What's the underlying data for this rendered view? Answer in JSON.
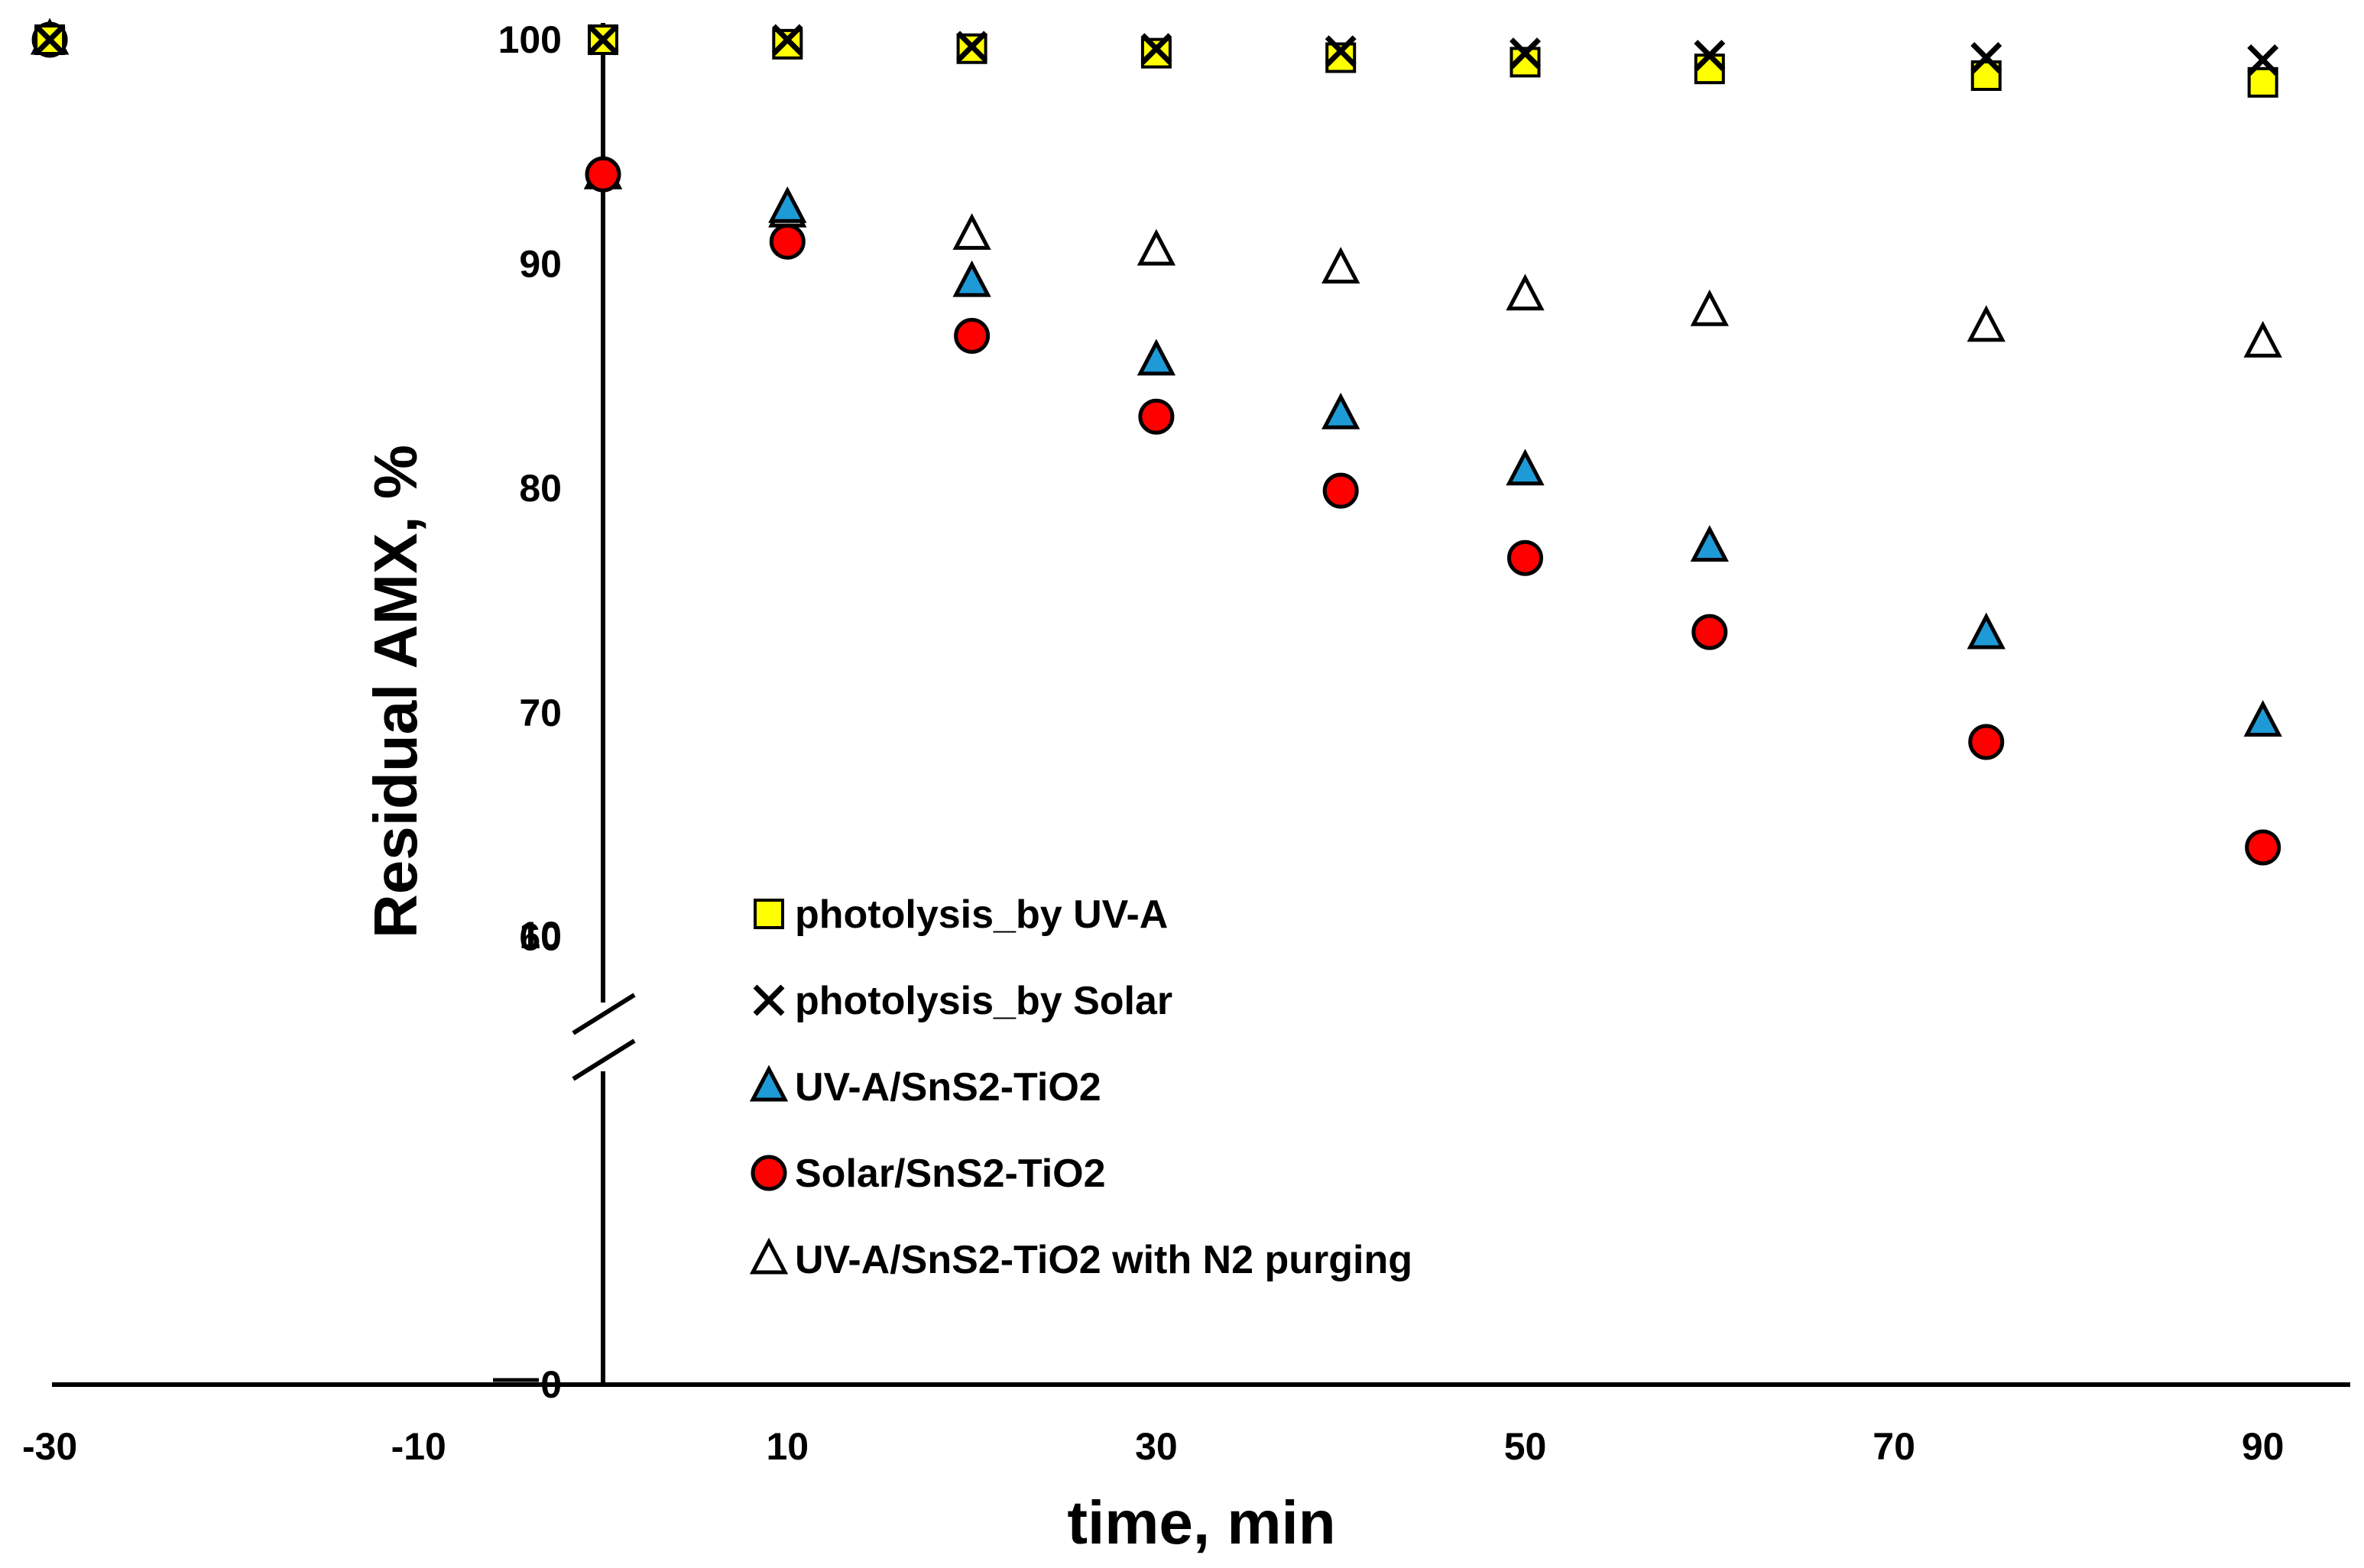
{
  "chart_data": {
    "type": "scatter",
    "title": "",
    "xlabel": "time, min",
    "ylabel": "Residual AMX, %",
    "xlim": [
      -30,
      95
    ],
    "y_axis_break": {
      "lower_range": [
        0,
        14
      ],
      "upper_range": [
        57,
        100
      ]
    },
    "grid": false,
    "legend_position": "center",
    "x_ticks": [
      "-30",
      "-10",
      "10",
      "30",
      "50",
      "70",
      "90"
    ],
    "y_ticks_upper": [
      "100",
      "90",
      "80",
      "70",
      "60"
    ],
    "y_ticks_lower": [
      "10",
      "0"
    ],
    "x": [
      -30,
      0,
      10,
      20,
      30,
      40,
      50,
      60,
      75,
      90
    ],
    "series": [
      {
        "name": "photolysis_by UV-A",
        "marker": "square",
        "fill": "#FFFF00",
        "values": [
          100,
          100,
          99.8,
          99.6,
          99.4,
          99.2,
          99.0,
          98.7,
          98.4,
          98.1
        ]
      },
      {
        "name": "photolysis_by Solar",
        "marker": "x",
        "fill": "#000000",
        "values": [
          100,
          100,
          100,
          99.7,
          99.6,
          99.5,
          99.4,
          99.3,
          99.2,
          99.1
        ]
      },
      {
        "name": "UV-A/SnS2-TiO2",
        "marker": "triangle",
        "fill": "#1E9BD7",
        "values": [
          100,
          94,
          92.5,
          89.2,
          85.7,
          83.3,
          80.8,
          77.4,
          73.5,
          69.6
        ]
      },
      {
        "name": "Solar/SnS2-TiO2",
        "marker": "circle",
        "fill": "#FF0000",
        "values": [
          100,
          94,
          91,
          86.8,
          83.2,
          79.9,
          76.9,
          73.6,
          68.7,
          64
        ]
      },
      {
        "name": "UV-A/SnS2-TiO2 with N2 purging",
        "marker": "triangle",
        "fill": "#FFFFFF",
        "values": [
          100,
          94,
          92.3,
          91.3,
          90.6,
          89.8,
          88.6,
          87.9,
          87.2,
          86.5
        ]
      }
    ]
  }
}
